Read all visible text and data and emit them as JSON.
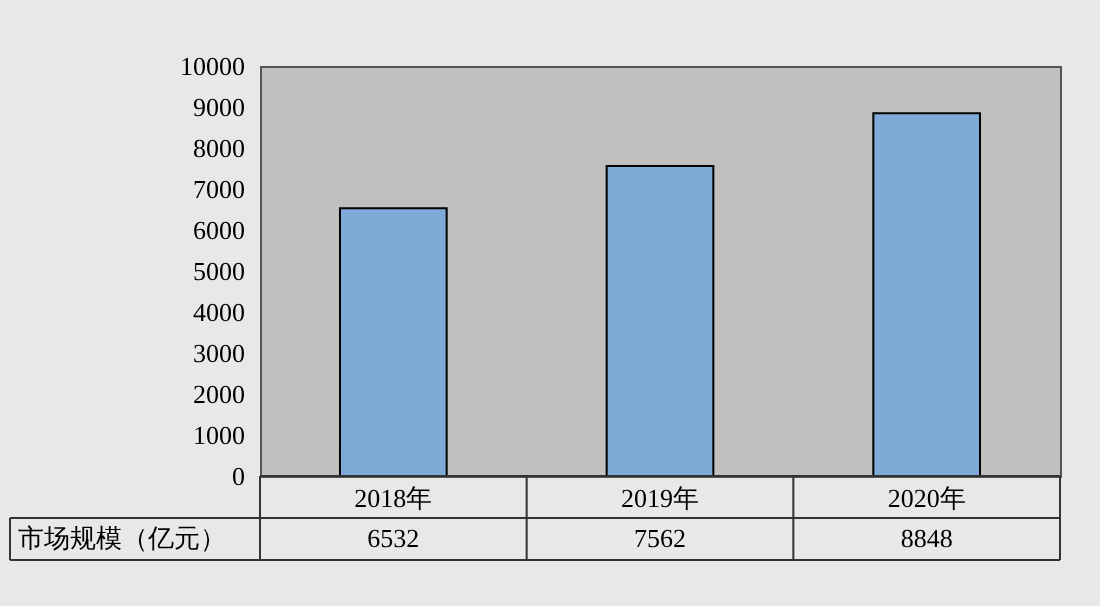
{
  "chart_data": {
    "type": "bar",
    "categories": [
      "2018年",
      "2019年",
      "2020年"
    ],
    "series": [
      {
        "name": "市场规模（亿元）",
        "color": "#7fa9d6",
        "values": [
          6532,
          7562,
          8848
        ]
      }
    ],
    "ylim": [
      0,
      10000
    ],
    "yticks": [
      0,
      1000,
      2000,
      3000,
      4000,
      5000,
      6000,
      7000,
      8000,
      9000,
      10000
    ],
    "data_labels": true,
    "grid": false
  }
}
